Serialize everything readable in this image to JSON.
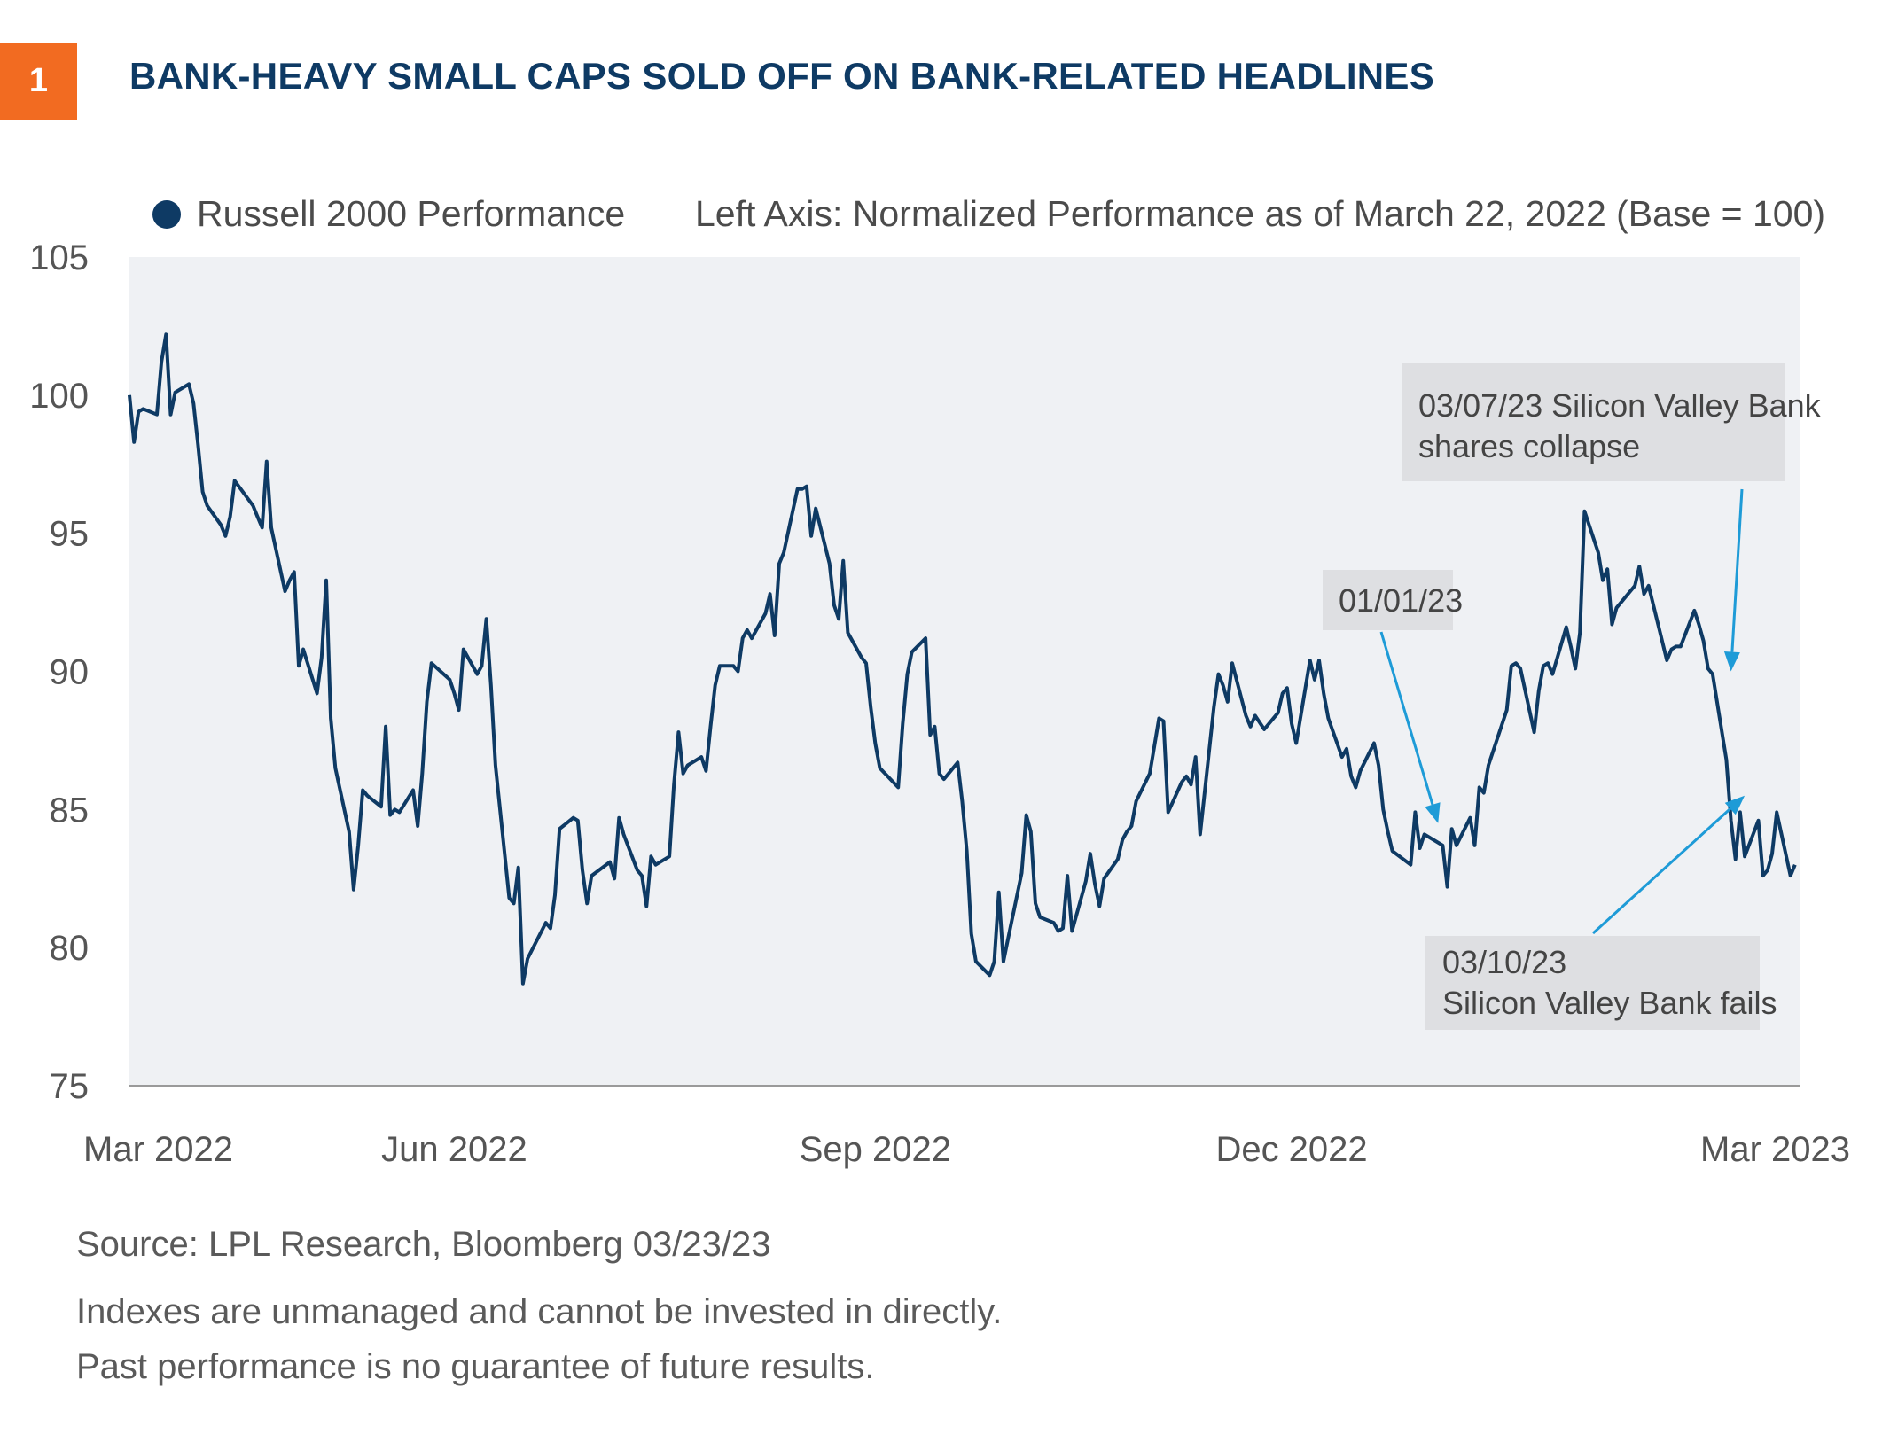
{
  "header": {
    "badge_number": "1",
    "title": "BANK-HEAVY SMALL CAPS SOLD OFF ON BANK-RELATED HEADLINES",
    "badge_color": "#F26B21",
    "title_color": "#0E3A64"
  },
  "legend": {
    "series_label": "Russell 2000 Performance",
    "axis_note": "Left Axis: Normalized Performance as of March 22, 2022 (Base = 100)"
  },
  "chart_data": {
    "type": "line",
    "title": "BANK-HEAVY SMALL CAPS SOLD OFF ON BANK-RELATED HEADLINES",
    "xlabel": "",
    "ylabel": "Left Axis: Normalized Performance as of March 22, 2022 (Base = 100)",
    "ylim": [
      75,
      105
    ],
    "yticks": [
      75,
      80,
      85,
      90,
      95,
      100,
      105
    ],
    "xlim": [
      "2022-03-22",
      "2023-03-22"
    ],
    "xticks": [
      {
        "date": "2022-03-22",
        "label": "Mar 2022"
      },
      {
        "date": "2022-06-01",
        "label": "Jun 2022"
      },
      {
        "date": "2022-09-01",
        "label": "Sep 2022"
      },
      {
        "date": "2022-12-01",
        "label": "Dec 2022"
      },
      {
        "date": "2023-03-22",
        "label": "Mar 2023"
      }
    ],
    "grid": false,
    "background": "#EFF1F4",
    "line_color": "#0E3A64",
    "annotation_color": "#1E9BD7",
    "series": [
      {
        "name": "Russell 2000 Performance",
        "points": [
          [
            "2022-03-22",
            100.0
          ],
          [
            "2022-03-23",
            98.3
          ],
          [
            "2022-03-24",
            99.4
          ],
          [
            "2022-03-25",
            99.5
          ],
          [
            "2022-03-28",
            99.3
          ],
          [
            "2022-03-29",
            101.2
          ],
          [
            "2022-03-30",
            102.2
          ],
          [
            "2022-03-31",
            99.3
          ],
          [
            "2022-04-01",
            100.1
          ],
          [
            "2022-04-04",
            100.4
          ],
          [
            "2022-04-05",
            99.7
          ],
          [
            "2022-04-06",
            98.2
          ],
          [
            "2022-04-07",
            96.5
          ],
          [
            "2022-04-08",
            96.0
          ],
          [
            "2022-04-11",
            95.3
          ],
          [
            "2022-04-12",
            94.9
          ],
          [
            "2022-04-13",
            95.6
          ],
          [
            "2022-04-14",
            96.9
          ],
          [
            "2022-04-18",
            96.0
          ],
          [
            "2022-04-19",
            95.6
          ],
          [
            "2022-04-20",
            95.2
          ],
          [
            "2022-04-21",
            97.6
          ],
          [
            "2022-04-22",
            95.2
          ],
          [
            "2022-04-25",
            92.9
          ],
          [
            "2022-04-26",
            93.3
          ],
          [
            "2022-04-27",
            93.6
          ],
          [
            "2022-04-28",
            90.2
          ],
          [
            "2022-04-29",
            90.8
          ],
          [
            "2022-05-02",
            89.2
          ],
          [
            "2022-05-03",
            90.5
          ],
          [
            "2022-05-04",
            93.3
          ],
          [
            "2022-05-05",
            88.3
          ],
          [
            "2022-05-06",
            86.5
          ],
          [
            "2022-05-09",
            84.2
          ],
          [
            "2022-05-10",
            82.1
          ],
          [
            "2022-05-11",
            83.7
          ],
          [
            "2022-05-12",
            85.7
          ],
          [
            "2022-05-13",
            85.5
          ],
          [
            "2022-05-16",
            85.1
          ],
          [
            "2022-05-17",
            88.0
          ],
          [
            "2022-05-18",
            84.8
          ],
          [
            "2022-05-19",
            85.0
          ],
          [
            "2022-05-20",
            84.9
          ],
          [
            "2022-05-23",
            85.7
          ],
          [
            "2022-05-24",
            84.4
          ],
          [
            "2022-05-25",
            86.3
          ],
          [
            "2022-05-26",
            88.9
          ],
          [
            "2022-05-27",
            90.3
          ],
          [
            "2022-05-31",
            89.7
          ],
          [
            "2022-06-01",
            89.2
          ],
          [
            "2022-06-02",
            88.6
          ],
          [
            "2022-06-03",
            90.8
          ],
          [
            "2022-06-06",
            89.9
          ],
          [
            "2022-06-07",
            90.2
          ],
          [
            "2022-06-08",
            91.9
          ],
          [
            "2022-06-09",
            89.5
          ],
          [
            "2022-06-10",
            86.6
          ],
          [
            "2022-06-13",
            81.8
          ],
          [
            "2022-06-14",
            81.6
          ],
          [
            "2022-06-15",
            82.9
          ],
          [
            "2022-06-16",
            78.7
          ],
          [
            "2022-06-17",
            79.6
          ],
          [
            "2022-06-21",
            80.9
          ],
          [
            "2022-06-22",
            80.7
          ],
          [
            "2022-06-23",
            81.9
          ],
          [
            "2022-06-24",
            84.3
          ],
          [
            "2022-06-27",
            84.7
          ],
          [
            "2022-06-28",
            84.6
          ],
          [
            "2022-06-29",
            82.8
          ],
          [
            "2022-06-30",
            81.6
          ],
          [
            "2022-07-01",
            82.6
          ],
          [
            "2022-07-05",
            83.1
          ],
          [
            "2022-07-06",
            82.5
          ],
          [
            "2022-07-07",
            84.7
          ],
          [
            "2022-07-08",
            84.1
          ],
          [
            "2022-07-11",
            82.8
          ],
          [
            "2022-07-12",
            82.6
          ],
          [
            "2022-07-13",
            81.5
          ],
          [
            "2022-07-14",
            83.3
          ],
          [
            "2022-07-15",
            83.0
          ],
          [
            "2022-07-18",
            83.3
          ],
          [
            "2022-07-19",
            85.9
          ],
          [
            "2022-07-20",
            87.8
          ],
          [
            "2022-07-21",
            86.3
          ],
          [
            "2022-07-22",
            86.6
          ],
          [
            "2022-07-25",
            86.9
          ],
          [
            "2022-07-26",
            86.4
          ],
          [
            "2022-07-27",
            88.0
          ],
          [
            "2022-07-28",
            89.5
          ],
          [
            "2022-07-29",
            90.2
          ],
          [
            "2022-08-01",
            90.2
          ],
          [
            "2022-08-02",
            90.0
          ],
          [
            "2022-08-03",
            91.2
          ],
          [
            "2022-08-04",
            91.5
          ],
          [
            "2022-08-05",
            91.2
          ],
          [
            "2022-08-08",
            92.1
          ],
          [
            "2022-08-09",
            92.8
          ],
          [
            "2022-08-10",
            91.3
          ],
          [
            "2022-08-11",
            93.9
          ],
          [
            "2022-08-12",
            94.3
          ],
          [
            "2022-08-15",
            96.6
          ],
          [
            "2022-08-16",
            96.6
          ],
          [
            "2022-08-17",
            96.7
          ],
          [
            "2022-08-18",
            94.9
          ],
          [
            "2022-08-19",
            95.9
          ],
          [
            "2022-08-22",
            93.9
          ],
          [
            "2022-08-23",
            92.4
          ],
          [
            "2022-08-24",
            91.9
          ],
          [
            "2022-08-25",
            94.0
          ],
          [
            "2022-08-26",
            91.4
          ],
          [
            "2022-08-29",
            90.5
          ],
          [
            "2022-08-30",
            90.3
          ],
          [
            "2022-08-31",
            88.7
          ],
          [
            "2022-09-01",
            87.4
          ],
          [
            "2022-09-02",
            86.5
          ],
          [
            "2022-09-06",
            85.8
          ],
          [
            "2022-09-07",
            88.1
          ],
          [
            "2022-09-08",
            89.9
          ],
          [
            "2022-09-09",
            90.7
          ],
          [
            "2022-09-12",
            91.2
          ],
          [
            "2022-09-13",
            87.7
          ],
          [
            "2022-09-14",
            88.0
          ],
          [
            "2022-09-15",
            86.3
          ],
          [
            "2022-09-16",
            86.1
          ],
          [
            "2022-09-19",
            86.7
          ],
          [
            "2022-09-20",
            85.3
          ],
          [
            "2022-09-21",
            83.5
          ],
          [
            "2022-09-22",
            80.5
          ],
          [
            "2022-09-23",
            79.5
          ],
          [
            "2022-09-26",
            79.0
          ],
          [
            "2022-09-27",
            79.5
          ],
          [
            "2022-09-28",
            82.0
          ],
          [
            "2022-09-29",
            79.5
          ],
          [
            "2022-09-30",
            80.3
          ],
          [
            "2022-10-03",
            82.7
          ],
          [
            "2022-10-04",
            84.8
          ],
          [
            "2022-10-05",
            84.2
          ],
          [
            "2022-10-06",
            81.6
          ],
          [
            "2022-10-07",
            81.1
          ],
          [
            "2022-10-10",
            80.9
          ],
          [
            "2022-10-11",
            80.6
          ],
          [
            "2022-10-12",
            80.7
          ],
          [
            "2022-10-13",
            82.6
          ],
          [
            "2022-10-14",
            80.6
          ],
          [
            "2022-10-17",
            82.4
          ],
          [
            "2022-10-18",
            83.4
          ],
          [
            "2022-10-19",
            82.3
          ],
          [
            "2022-10-20",
            81.5
          ],
          [
            "2022-10-21",
            82.5
          ],
          [
            "2022-10-24",
            83.2
          ],
          [
            "2022-10-25",
            83.9
          ],
          [
            "2022-10-26",
            84.2
          ],
          [
            "2022-10-27",
            84.4
          ],
          [
            "2022-10-28",
            85.3
          ],
          [
            "2022-10-31",
            86.3
          ],
          [
            "2022-11-01",
            87.3
          ],
          [
            "2022-11-02",
            88.3
          ],
          [
            "2022-11-03",
            88.2
          ],
          [
            "2022-11-04",
            84.9
          ],
          [
            "2022-11-07",
            86.0
          ],
          [
            "2022-11-08",
            86.2
          ],
          [
            "2022-11-09",
            85.9
          ],
          [
            "2022-11-10",
            86.9
          ],
          [
            "2022-11-11",
            84.1
          ],
          [
            "2022-11-14",
            88.7
          ],
          [
            "2022-11-15",
            89.9
          ],
          [
            "2022-11-16",
            89.5
          ],
          [
            "2022-11-17",
            88.9
          ],
          [
            "2022-11-18",
            90.3
          ],
          [
            "2022-11-21",
            88.4
          ],
          [
            "2022-11-22",
            88.0
          ],
          [
            "2022-11-23",
            88.4
          ],
          [
            "2022-11-25",
            87.9
          ],
          [
            "2022-11-28",
            88.5
          ],
          [
            "2022-11-29",
            89.2
          ],
          [
            "2022-11-30",
            89.4
          ],
          [
            "2022-12-01",
            88.1
          ],
          [
            "2022-12-02",
            87.4
          ],
          [
            "2022-12-05",
            90.4
          ],
          [
            "2022-12-06",
            89.7
          ],
          [
            "2022-12-07",
            90.4
          ],
          [
            "2022-12-08",
            89.2
          ],
          [
            "2022-12-09",
            88.3
          ],
          [
            "2022-12-12",
            86.9
          ],
          [
            "2022-12-13",
            87.2
          ],
          [
            "2022-12-14",
            86.2
          ],
          [
            "2022-12-15",
            85.8
          ],
          [
            "2022-12-16",
            86.4
          ],
          [
            "2022-12-19",
            87.4
          ],
          [
            "2022-12-20",
            86.6
          ],
          [
            "2022-12-21",
            85.0
          ],
          [
            "2022-12-22",
            84.2
          ],
          [
            "2022-12-23",
            83.5
          ],
          [
            "2022-12-27",
            83.0
          ],
          [
            "2022-12-28",
            84.9
          ],
          [
            "2022-12-29",
            83.6
          ],
          [
            "2022-12-30",
            84.1
          ],
          [
            "2023-01-03",
            83.7
          ],
          [
            "2023-01-04",
            82.2
          ],
          [
            "2023-01-05",
            84.3
          ],
          [
            "2023-01-06",
            83.7
          ],
          [
            "2023-01-09",
            84.7
          ],
          [
            "2023-01-10",
            83.7
          ],
          [
            "2023-01-11",
            85.8
          ],
          [
            "2023-01-12",
            85.6
          ],
          [
            "2023-01-13",
            86.6
          ],
          [
            "2023-01-17",
            88.6
          ],
          [
            "2023-01-18",
            90.2
          ],
          [
            "2023-01-19",
            90.3
          ],
          [
            "2023-01-20",
            90.1
          ],
          [
            "2023-01-23",
            87.8
          ],
          [
            "2023-01-24",
            89.3
          ],
          [
            "2023-01-25",
            90.2
          ],
          [
            "2023-01-26",
            90.3
          ],
          [
            "2023-01-27",
            89.9
          ],
          [
            "2023-01-30",
            91.6
          ],
          [
            "2023-01-31",
            90.9
          ],
          [
            "2023-02-01",
            90.1
          ],
          [
            "2023-02-02",
            91.4
          ],
          [
            "2023-02-03",
            95.8
          ],
          [
            "2023-02-06",
            94.3
          ],
          [
            "2023-02-07",
            93.3
          ],
          [
            "2023-02-08",
            93.7
          ],
          [
            "2023-02-09",
            91.7
          ],
          [
            "2023-02-10",
            92.3
          ],
          [
            "2023-02-13",
            92.9
          ],
          [
            "2023-02-14",
            93.1
          ],
          [
            "2023-02-15",
            93.8
          ],
          [
            "2023-02-16",
            92.8
          ],
          [
            "2023-02-17",
            93.1
          ],
          [
            "2023-02-21",
            90.4
          ],
          [
            "2023-02-22",
            90.8
          ],
          [
            "2023-02-23",
            90.9
          ],
          [
            "2023-02-24",
            90.9
          ],
          [
            "2023-02-27",
            92.2
          ],
          [
            "2023-02-28",
            91.7
          ],
          [
            "2023-03-01",
            91.1
          ],
          [
            "2023-03-02",
            90.1
          ],
          [
            "2023-03-03",
            89.9
          ],
          [
            "2023-03-06",
            86.8
          ],
          [
            "2023-03-07",
            84.6
          ],
          [
            "2023-03-08",
            83.2
          ],
          [
            "2023-03-09",
            84.9
          ],
          [
            "2023-03-10",
            83.3
          ],
          [
            "2023-03-13",
            84.6
          ],
          [
            "2023-03-14",
            82.6
          ],
          [
            "2023-03-15",
            82.8
          ],
          [
            "2023-03-16",
            83.4
          ],
          [
            "2023-03-17",
            84.9
          ],
          [
            "2023-03-20",
            82.6
          ],
          [
            "2023-03-21",
            83.0
          ]
        ]
      }
    ],
    "annotations": [
      {
        "label_lines": [
          "03/07/23 Silicon Valley Bank",
          "shares collapse"
        ],
        "arrow_to_date": "2023-03-07",
        "arrow_to_value": 90.0
      },
      {
        "label_lines": [
          "01/01/23"
        ],
        "arrow_to_date": "2023-01-02",
        "arrow_to_value": 84.5
      },
      {
        "label_lines": [
          "03/10/23",
          "Silicon Valley Bank fails"
        ],
        "arrow_to_date": "2023-03-10",
        "arrow_to_value": 85.5
      }
    ]
  },
  "footer": {
    "source": "Source: LPL Research, Bloomberg  03/23/23",
    "disclaimer_1": "Indexes are unmanaged and cannot be invested in directly.",
    "disclaimer_2": "Past performance is no guarantee of future results."
  }
}
